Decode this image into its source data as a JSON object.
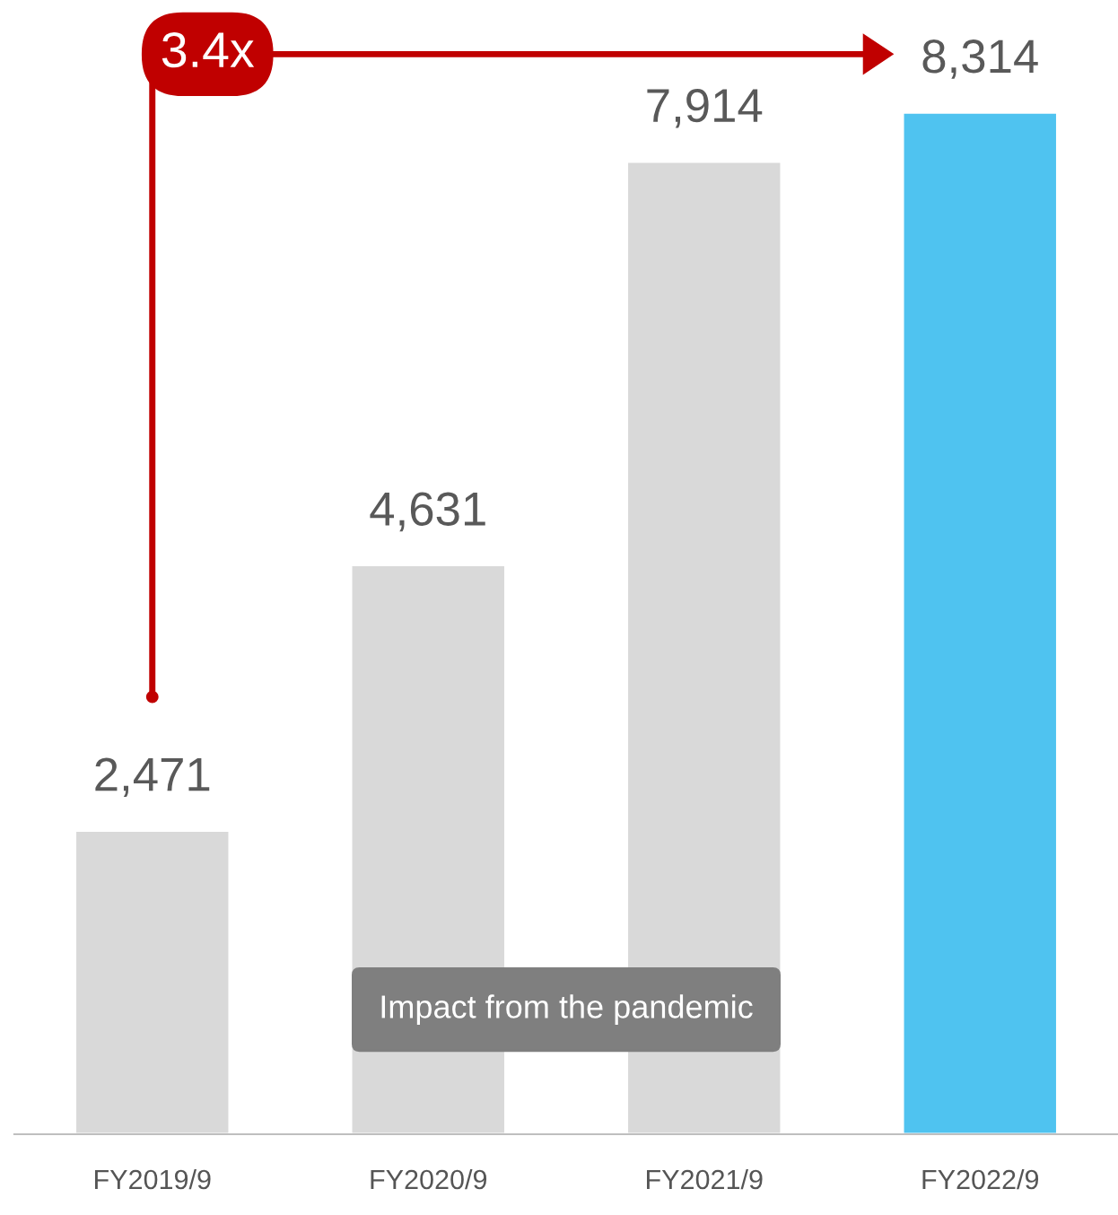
{
  "chart_data": {
    "type": "bar",
    "categories": [
      "FY2019/9",
      "FY2020/9",
      "FY2021/9",
      "FY2022/9"
    ],
    "values": [
      2471,
      4631,
      7914,
      8314
    ],
    "colors": [
      "#d9d9d9",
      "#d9d9d9",
      "#d9d9d9",
      "#4fc3f0"
    ],
    "data_labels": true,
    "value_labels": [
      "2,471",
      "4,631",
      "7,914",
      "8,314"
    ],
    "annotations": [
      "3.4x",
      "Impact from the pandemic"
    ],
    "legend": false,
    "grid": false
  }
}
